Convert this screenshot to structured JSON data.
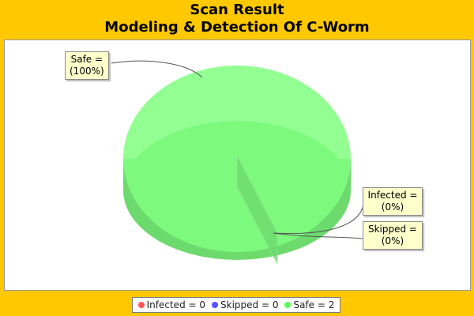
{
  "title": {
    "line1": "Scan Result",
    "line2": "Modeling & Detection Of C-Worm"
  },
  "callouts": {
    "safe": {
      "line1": "Safe  =",
      "line2": "(100%)"
    },
    "infected": {
      "line1": "Infected  =",
      "line2": "(0%)"
    },
    "skipped": {
      "line1": "Skipped  =",
      "line2": "(0%)"
    }
  },
  "legend": [
    {
      "label": "Infected  = 0",
      "color": "#FF5555"
    },
    {
      "label": "Skipped  = 0",
      "color": "#5555FF"
    },
    {
      "label": "Safe  = 2",
      "color": "#55FF55"
    }
  ],
  "chart_data": {
    "type": "pie",
    "title": "Scan Result\nModeling & Detection Of C-Worm",
    "style": "3d",
    "categories": [
      "Infected",
      "Skipped",
      "Safe"
    ],
    "values": [
      0,
      0,
      2
    ],
    "percent_labels": [
      "(0%)",
      "(0%)",
      "(100%)"
    ],
    "colors": [
      "#FF5555",
      "#5555FF",
      "#55FF55"
    ],
    "legend_position": "bottom"
  }
}
